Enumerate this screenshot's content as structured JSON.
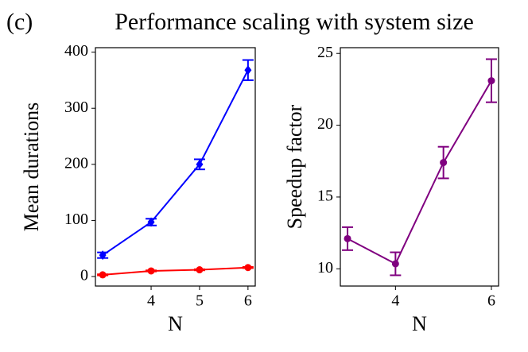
{
  "panel_label": "(c)",
  "title": "Performance scaling with system size",
  "chart_data": [
    {
      "type": "line",
      "ylabel": "Mean durations",
      "xlabel": "N",
      "x": [
        3,
        4,
        5,
        6
      ],
      "xlim": [
        2.85,
        6.15
      ],
      "xticks": [
        4,
        5,
        6
      ],
      "ylim": [
        -17,
        408
      ],
      "yticks": [
        0,
        100,
        200,
        300,
        400
      ],
      "series": [
        {
          "color": "#0000ff",
          "marker": "diamond",
          "values": [
            38,
            97,
            200,
            368
          ],
          "errors": [
            5,
            6,
            9,
            18
          ]
        },
        {
          "color": "#ff0000",
          "marker": "circle",
          "values": [
            3,
            10,
            12,
            16
          ],
          "errors": [
            1,
            1,
            1,
            1
          ]
        }
      ]
    },
    {
      "type": "line",
      "ylabel": "Speedup factor",
      "xlabel": "N",
      "x": [
        3,
        4,
        5,
        6
      ],
      "xlim": [
        2.85,
        6.15
      ],
      "xticks": [
        4,
        6
      ],
      "ylim": [
        8.8,
        25.4
      ],
      "yticks": [
        10,
        15,
        20,
        25
      ],
      "series": [
        {
          "color": "#800080",
          "marker": "circle",
          "values": [
            12.1,
            10.35,
            17.4,
            23.1
          ],
          "errors": [
            0.8,
            0.8,
            1.1,
            1.5
          ]
        }
      ]
    }
  ]
}
